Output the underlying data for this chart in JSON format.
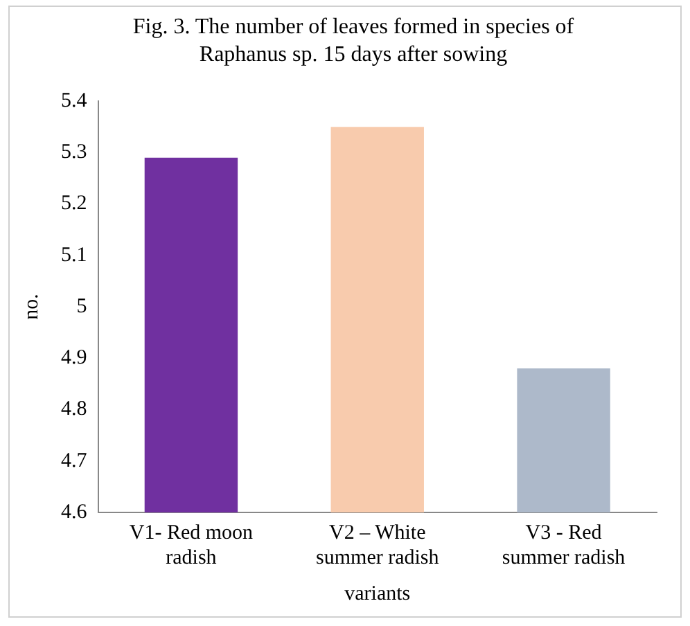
{
  "chart_data": {
    "type": "bar",
    "title": "Fig. 3. The number of leaves formed in species of Raphanus sp. 15 days after sowing",
    "xlabel": "variants",
    "ylabel": "no.",
    "categories": [
      "V1- Red moon radish",
      "V2 – White summer radish",
      "V3 - Red summer radish"
    ],
    "values": [
      5.29,
      5.35,
      4.88
    ],
    "colors": [
      "#7030a0",
      "#f8cbad",
      "#adb9ca"
    ],
    "ylim": [
      4.6,
      5.4
    ],
    "yticks": [
      4.6,
      4.7,
      4.8,
      4.9,
      5,
      5.1,
      5.2,
      5.3,
      5.4
    ],
    "grid": false,
    "legend": false
  }
}
